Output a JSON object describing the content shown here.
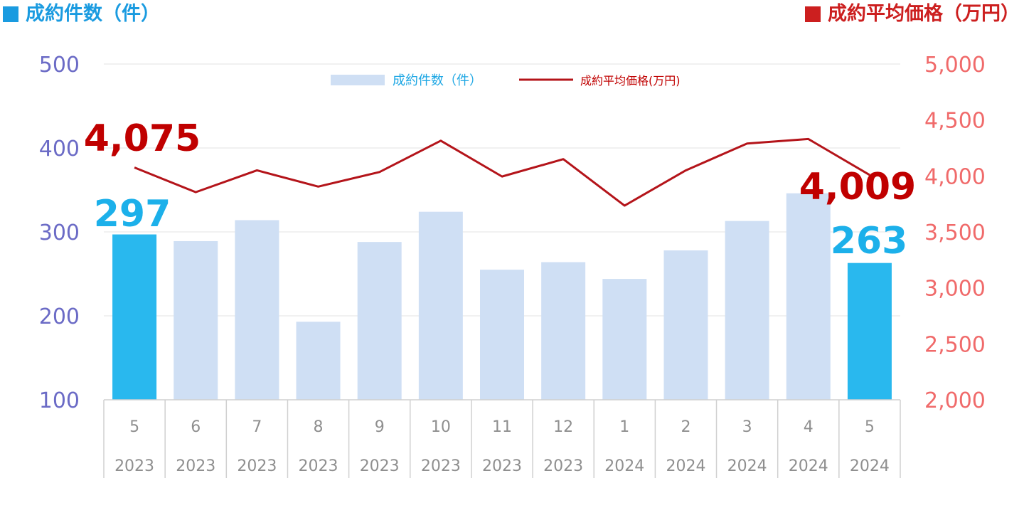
{
  "colors": {
    "count_title": "#1a9be0",
    "price_title": "#cc1f1f",
    "bar_normal": "#cfdff4",
    "bar_highlight": "#29b8ee",
    "line": "#b4141a",
    "left_axis": "#6b6bc6",
    "right_axis": "#f06a6a",
    "label_price": "#c00000",
    "label_count": "#1cb0ea",
    "legend_count_text": "#1ea7e4",
    "legend_price_text": "#c00000",
    "grid": "#e3e3e3",
    "tick_text": "#8f8f8f"
  },
  "header": {
    "left_title": "成約件数（件）",
    "right_title": "成約平均価格（万円）"
  },
  "chart_data": {
    "type": "bar",
    "categories": [
      {
        "month": "5",
        "year": "2023"
      },
      {
        "month": "6",
        "year": "2023"
      },
      {
        "month": "7",
        "year": "2023"
      },
      {
        "month": "8",
        "year": "2023"
      },
      {
        "month": "9",
        "year": "2023"
      },
      {
        "month": "10",
        "year": "2023"
      },
      {
        "month": "11",
        "year": "2023"
      },
      {
        "month": "12",
        "year": "2023"
      },
      {
        "month": "1",
        "year": "2024"
      },
      {
        "month": "2",
        "year": "2024"
      },
      {
        "month": "3",
        "year": "2024"
      },
      {
        "month": "4",
        "year": "2024"
      },
      {
        "month": "5",
        "year": "2024"
      }
    ],
    "series": [
      {
        "name": "成約件数（件）",
        "type": "bar",
        "axis": "left",
        "values": [
          297,
          289,
          314,
          193,
          288,
          324,
          255,
          264,
          244,
          278,
          313,
          346,
          263
        ],
        "highlight": [
          true,
          false,
          false,
          false,
          false,
          false,
          false,
          false,
          false,
          false,
          false,
          false,
          true
        ]
      },
      {
        "name": "成約平均価格(万円)",
        "type": "line",
        "axis": "right",
        "values": [
          4075,
          3855,
          4050,
          3905,
          4035,
          4315,
          3995,
          4150,
          3735,
          4050,
          4290,
          4330,
          4009
        ]
      }
    ],
    "left_axis": {
      "min": 100,
      "max": 500,
      "ticks": [
        "100",
        "200",
        "300",
        "400",
        "500"
      ]
    },
    "right_axis": {
      "min": 2000,
      "max": 5000,
      "ticks": [
        "2,000",
        "2,500",
        "3,000",
        "3,500",
        "4,000",
        "4,500",
        "5,000"
      ]
    },
    "grid": true,
    "legend_position": "top-center",
    "annotations": [
      {
        "text": "4,075",
        "series": "price",
        "index": 0
      },
      {
        "text": "297",
        "series": "count",
        "index": 0
      },
      {
        "text": "4,009",
        "series": "price",
        "index": 12
      },
      {
        "text": "263",
        "series": "count",
        "index": 12
      }
    ]
  }
}
